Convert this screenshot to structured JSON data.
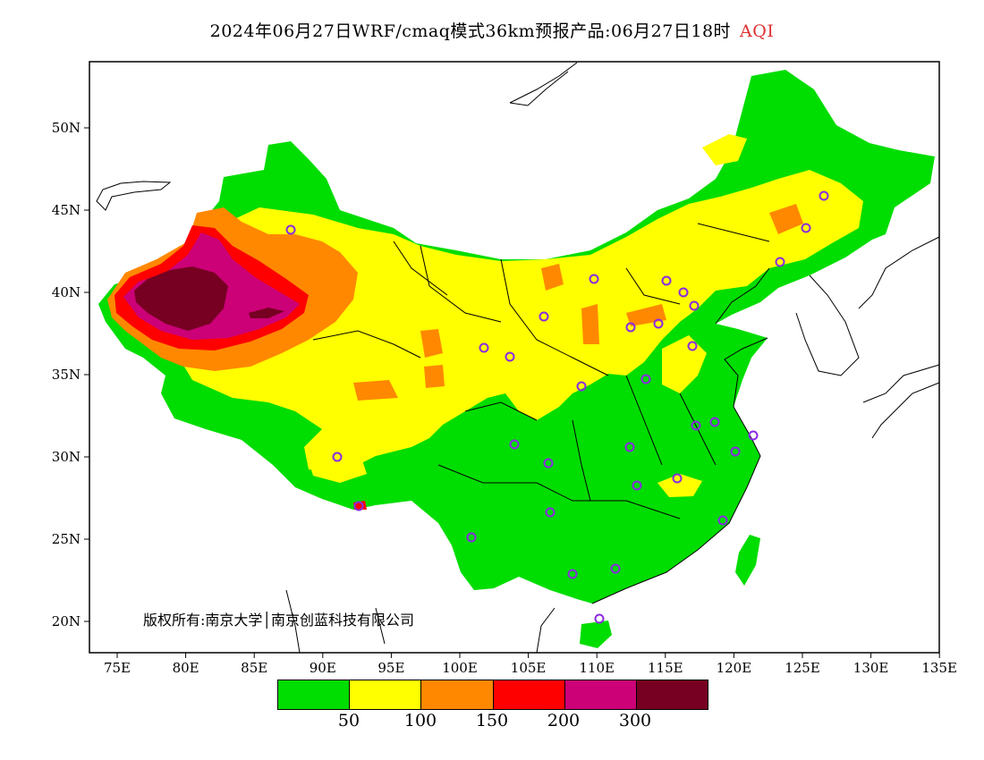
{
  "title": {
    "main": "2024年06月27日WRF/cmaq模式36km预报产品:06月27日18时",
    "variable": "AQI"
  },
  "axes": {
    "lat_labels": [
      "50N",
      "45N",
      "40N",
      "35N",
      "30N",
      "25N",
      "20N"
    ],
    "lon_labels": [
      "75E",
      "80E",
      "85E",
      "90E",
      "95E",
      "100E",
      "105E",
      "110E",
      "115E",
      "120E",
      "125E",
      "130E",
      "135E"
    ]
  },
  "legend": {
    "colors": [
      "#00dd00",
      "#ffff00",
      "#ff8800",
      "#ff0000",
      "#cc0077",
      "#770022"
    ],
    "ticks": [
      "50",
      "100",
      "150",
      "200",
      "300"
    ]
  },
  "copyright": "版权所有:南京大学│南京创蓝科技有限公司",
  "colors": {
    "frame": "#000000",
    "station": "#8a2be2"
  }
}
